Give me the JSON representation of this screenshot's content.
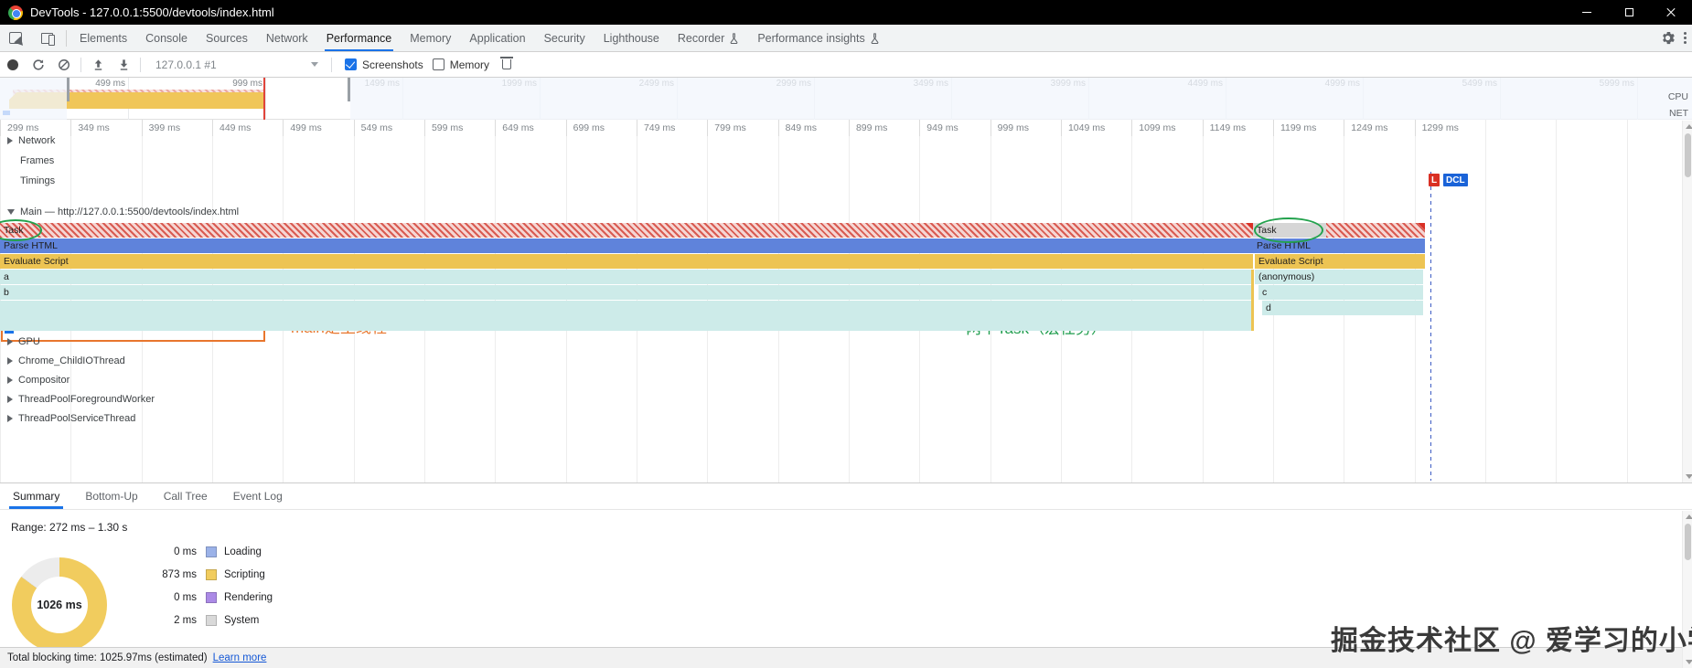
{
  "titlebar": {
    "title": "DevTools - 127.0.0.1:5500/devtools/index.html"
  },
  "tabbar": {
    "tabs": [
      {
        "label": "Elements",
        "flask": false
      },
      {
        "label": "Console",
        "flask": false
      },
      {
        "label": "Sources",
        "flask": false
      },
      {
        "label": "Network",
        "flask": false
      },
      {
        "label": "Performance",
        "flask": false
      },
      {
        "label": "Memory",
        "flask": false
      },
      {
        "label": "Application",
        "flask": false
      },
      {
        "label": "Security",
        "flask": false
      },
      {
        "label": "Lighthouse",
        "flask": false
      },
      {
        "label": "Recorder",
        "flask": true
      },
      {
        "label": "Performance insights",
        "flask": true
      }
    ],
    "active": "Performance"
  },
  "toolbar": {
    "target_value": "127.0.0.1 #1",
    "screenshots_label": "Screenshots",
    "screenshots_checked": true,
    "memory_label": "Memory",
    "memory_checked": false
  },
  "overview": {
    "ticks": [
      "499 ms",
      "999 ms",
      "1499 ms",
      "1999 ms",
      "2499 ms",
      "2999 ms",
      "3499 ms",
      "3999 ms",
      "4499 ms",
      "4999 ms",
      "5499 ms",
      "5999 ms"
    ],
    "cpu_label": "CPU",
    "net_label": "NET"
  },
  "ruler": {
    "ticks": [
      "299 ms",
      "349 ms",
      "399 ms",
      "449 ms",
      "499 ms",
      "549 ms",
      "599 ms",
      "649 ms",
      "699 ms",
      "749 ms",
      "799 ms",
      "849 ms",
      "899 ms",
      "949 ms",
      "999 ms",
      "1049 ms",
      "1099 ms",
      "1149 ms",
      "1199 ms",
      "1249 ms",
      "1299 ms"
    ]
  },
  "tracks": {
    "network_label": "Network",
    "frames_label": "Frames",
    "timings_label": "Timings",
    "main_label": "Main — http://127.0.0.1:5500/devtools/index.html",
    "markers": {
      "load": "L",
      "dcl": "DCL"
    },
    "annotations": {
      "main_note": "main是主线程",
      "task_note": "两个Task（宏任务）",
      "orange": "#e8762d",
      "green": "#1f9d4d"
    },
    "flame_left": {
      "task": "Task",
      "parse_html": "Parse HTML",
      "evaluate_script": "Evaluate Script",
      "fn_a": "a",
      "fn_b": "b"
    },
    "flame_right": {
      "task": "Task",
      "parse_html": "Parse HTML",
      "evaluate_script": "Evaluate Script",
      "anonymous": "(anonymous)",
      "fn_c": "c",
      "fn_d": "d"
    },
    "threads": [
      "GPU",
      "Chrome_ChildIOThread",
      "Compositor",
      "ThreadPoolForegroundWorker",
      "ThreadPoolServiceThread"
    ],
    "colors": {
      "task_stripe_red": "#d95b52",
      "parse_html_blue": "#5f83db",
      "script_yellow": "#edc453",
      "js_frame_teal": "#cdebe9",
      "task_gray": "#d6d6d6"
    }
  },
  "bottom_tabs": {
    "tabs": [
      "Summary",
      "Bottom-Up",
      "Call Tree",
      "Event Log"
    ],
    "active": "Summary"
  },
  "summary": {
    "range": "Range: 272 ms – 1.30 s",
    "total": "1026 ms",
    "total_ms": 1026,
    "rows": [
      {
        "value": "0 ms",
        "ms": 0,
        "label": "Loading",
        "color": "#9bb2e8"
      },
      {
        "value": "873 ms",
        "ms": 873,
        "label": "Scripting",
        "color": "#f1cc5e"
      },
      {
        "value": "0 ms",
        "ms": 0,
        "label": "Rendering",
        "color": "#ab8ae6"
      },
      {
        "value": "2 ms",
        "ms": 2,
        "label": "System",
        "color": "#d9d9d9"
      }
    ],
    "idle_color": "#ececec"
  },
  "statusbar": {
    "text": "Total blocking time: 1025.97ms (estimated)",
    "link": "Learn more"
  },
  "watermark": {
    "text": "掘金技术社区 @ 爱学习的小学渣"
  }
}
